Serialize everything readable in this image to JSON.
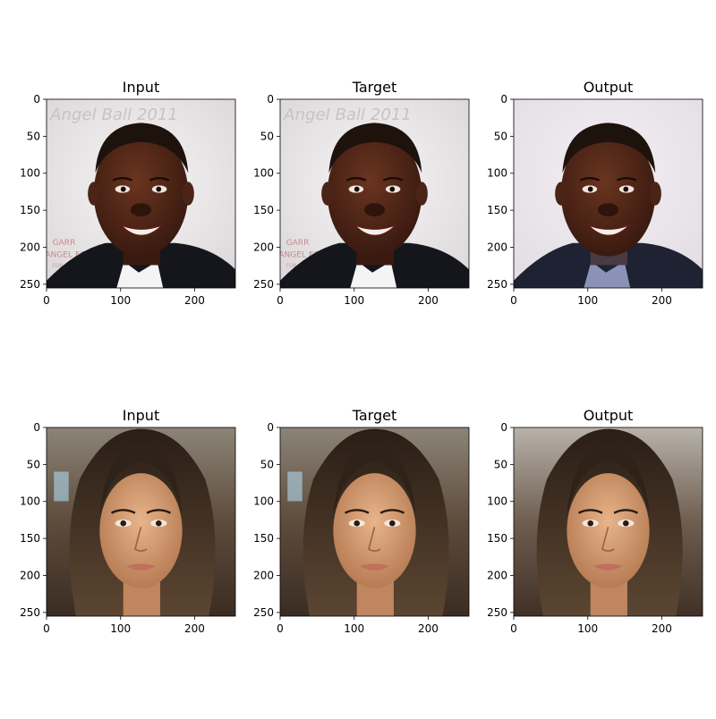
{
  "figure": {
    "rows": [
      {
        "panels": [
          {
            "title": "Input",
            "subject": "man-smiling-suit",
            "backdrop_text": [
              "Angel Ball 2011",
              "GARR",
              "ANGEL FO",
              "FOR CANC"
            ]
          },
          {
            "title": "Target",
            "subject": "man-smiling-suit",
            "backdrop_text": [
              "Angel Ball 2011",
              "GARR",
              "ANGEL FO",
              "FOR CANC"
            ]
          },
          {
            "title": "Output",
            "subject": "man-smiling-suit-reconstructed"
          }
        ]
      },
      {
        "panels": [
          {
            "title": "Input",
            "subject": "woman-long-dark-hair"
          },
          {
            "title": "Target",
            "subject": "woman-long-dark-hair"
          },
          {
            "title": "Output",
            "subject": "woman-long-dark-hair-reconstructed"
          }
        ]
      }
    ],
    "x_ticks": [
      "0",
      "100",
      "200"
    ],
    "y_ticks": [
      "0",
      "50",
      "100",
      "150",
      "200",
      "250"
    ],
    "axis_range": [
      0,
      255
    ],
    "colors": {
      "man_skin": "#4a2416",
      "man_hair": "#1e120c",
      "man_bg": "#ece9ea",
      "woman_skin": "#d4a078",
      "woman_hair": "#3a2a1e",
      "woman_bg": "#5a4a3c",
      "suit": "#15161b"
    }
  }
}
